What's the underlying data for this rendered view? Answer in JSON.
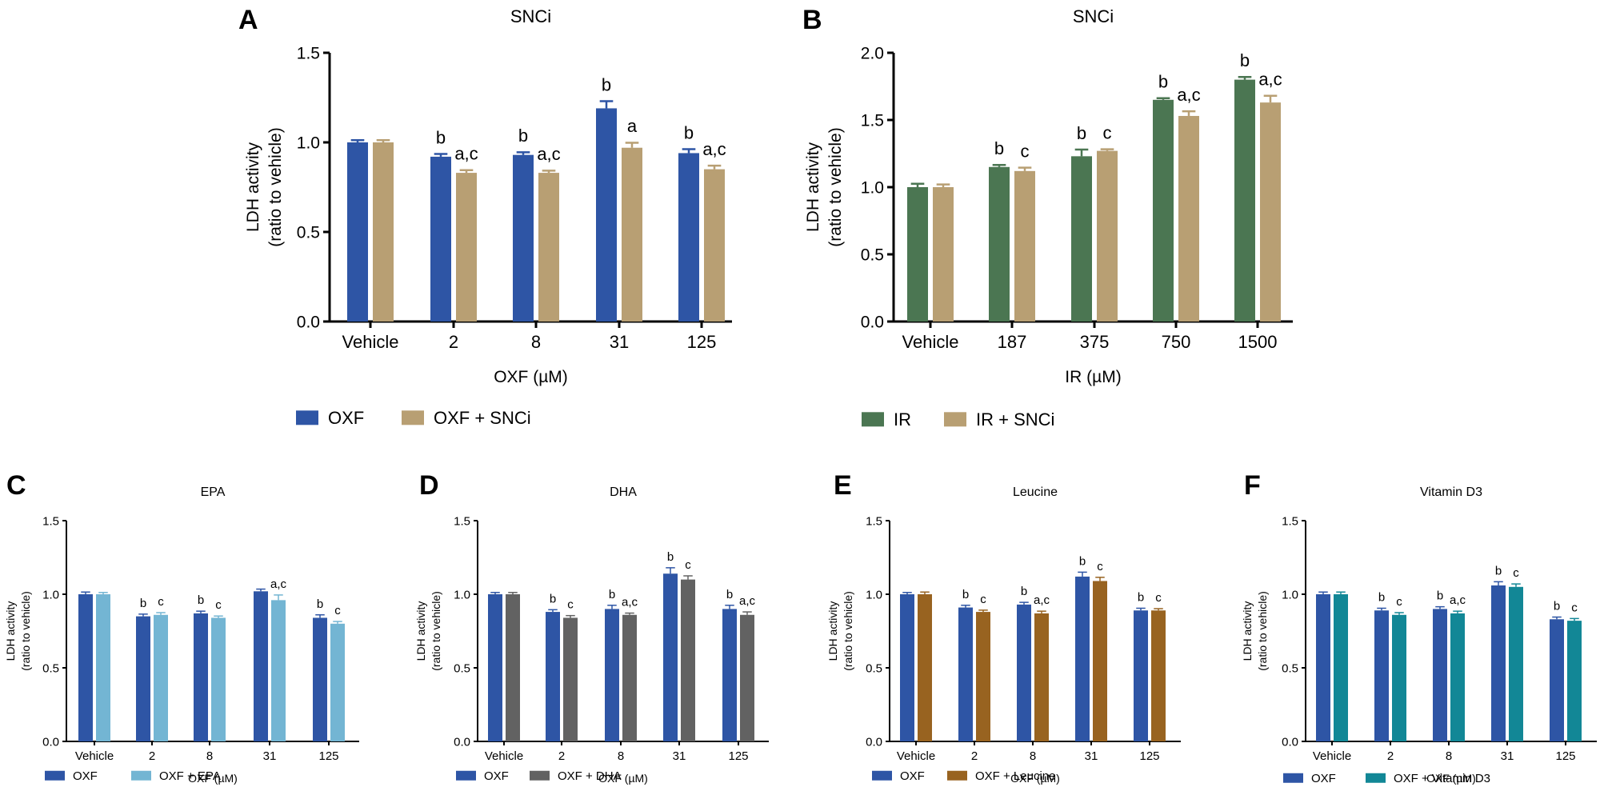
{
  "chart_data": [
    {
      "panel": "A",
      "type": "bar",
      "title": "SNCi",
      "xlabel": "OXF (µM)",
      "ylabel": [
        "LDH activity",
        "(ratio to vehicle)"
      ],
      "categories": [
        "Vehicle",
        "2",
        "8",
        "31",
        "125"
      ],
      "ylim": [
        0,
        1.5
      ],
      "yticks": [
        "0.0",
        "0.5",
        "1.0",
        "1.5"
      ],
      "legend_position": "bottom",
      "series": [
        {
          "name": "OXF",
          "color": "#2e55a5",
          "values": [
            1.0,
            0.92,
            0.93,
            1.19,
            0.94
          ],
          "errors": [
            0.012,
            0.015,
            0.015,
            0.04,
            0.022
          ],
          "labels": [
            "",
            "b",
            "b",
            "b",
            "b"
          ]
        },
        {
          "name": "OXF + SNCi",
          "color": "#b89f73",
          "values": [
            1.0,
            0.83,
            0.83,
            0.97,
            0.85
          ],
          "errors": [
            0.012,
            0.015,
            0.012,
            0.028,
            0.02
          ],
          "labels": [
            "",
            "a,c",
            "a,c",
            "a",
            "a,c"
          ]
        }
      ]
    },
    {
      "panel": "B",
      "type": "bar",
      "title": "SNCi",
      "xlabel": "IR (µM)",
      "ylabel": [
        "LDH activity",
        "(ratio to vehicle)"
      ],
      "categories": [
        "Vehicle",
        "187",
        "375",
        "750",
        "1500"
      ],
      "ylim": [
        0,
        2.0
      ],
      "yticks": [
        "0.0",
        "0.5",
        "1.0",
        "1.5",
        "2.0"
      ],
      "legend_position": "bottom",
      "series": [
        {
          "name": "IR",
          "color": "#4b7652",
          "values": [
            1.0,
            1.15,
            1.23,
            1.65,
            1.8
          ],
          "errors": [
            0.025,
            0.015,
            0.05,
            0.012,
            0.02
          ],
          "labels": [
            "",
            "b",
            "b",
            "b",
            "b"
          ]
        },
        {
          "name": "IR + SNCi",
          "color": "#b89f73",
          "values": [
            1.0,
            1.12,
            1.27,
            1.53,
            1.63
          ],
          "errors": [
            0.02,
            0.025,
            0.012,
            0.035,
            0.05
          ],
          "labels": [
            "",
            "c",
            "c",
            "a,c",
            "a,c"
          ]
        }
      ]
    },
    {
      "panel": "C",
      "type": "bar",
      "title": "EPA",
      "xlabel": "OXF (µM)",
      "ylabel": [
        "LDH activity",
        "(ratio to vehicle)"
      ],
      "categories": [
        "Vehicle",
        "2",
        "8",
        "31",
        "125"
      ],
      "ylim": [
        0,
        1.5
      ],
      "yticks": [
        "0.0",
        "0.5",
        "1.0",
        "1.5"
      ],
      "legend_position": "bottom",
      "series": [
        {
          "name": "OXF",
          "color": "#2e55a5",
          "values": [
            1.0,
            0.85,
            0.87,
            1.02,
            0.84
          ],
          "errors": [
            0.015,
            0.015,
            0.015,
            0.015,
            0.02
          ],
          "labels": [
            "",
            "b",
            "b",
            "",
            "b"
          ]
        },
        {
          "name": "OXF + EPA",
          "color": "#73b5d3",
          "values": [
            1.0,
            0.86,
            0.84,
            0.96,
            0.8
          ],
          "errors": [
            0.012,
            0.015,
            0.012,
            0.035,
            0.015
          ],
          "labels": [
            "",
            "c",
            "c",
            "a,c",
            "c"
          ]
        }
      ]
    },
    {
      "panel": "D",
      "type": "bar",
      "title": "DHA",
      "xlabel": "OXF (µM)",
      "ylabel": [
        "LDH activity",
        "(ratio to vehicle)"
      ],
      "categories": [
        "Vehicle",
        "2",
        "8",
        "31",
        "125"
      ],
      "ylim": [
        0,
        1.5
      ],
      "yticks": [
        "0.0",
        "0.5",
        "1.0",
        "1.5"
      ],
      "legend_position": "bottom",
      "series": [
        {
          "name": "OXF",
          "color": "#2e55a5",
          "values": [
            1.0,
            0.88,
            0.9,
            1.14,
            0.9
          ],
          "errors": [
            0.012,
            0.015,
            0.025,
            0.04,
            0.025
          ],
          "labels": [
            "",
            "b",
            "b",
            "b",
            "b"
          ]
        },
        {
          "name": "OXF + DHA",
          "color": "#626262",
          "values": [
            1.0,
            0.84,
            0.86,
            1.1,
            0.86
          ],
          "errors": [
            0.012,
            0.015,
            0.012,
            0.025,
            0.02
          ],
          "labels": [
            "",
            "c",
            "a,c",
            "c",
            "a,c"
          ]
        }
      ]
    },
    {
      "panel": "E",
      "type": "bar",
      "title": "Leucine",
      "xlabel": "OXF (µM)",
      "ylabel": [
        "LDH activity",
        "(ratio to vehicle)"
      ],
      "categories": [
        "Vehicle",
        "2",
        "8",
        "31",
        "125"
      ],
      "ylim": [
        0,
        1.5
      ],
      "yticks": [
        "0.0",
        "0.5",
        "1.0",
        "1.5"
      ],
      "legend_position": "bottom",
      "series": [
        {
          "name": "OXF",
          "color": "#2e55a5",
          "values": [
            1.0,
            0.91,
            0.93,
            1.12,
            0.89
          ],
          "errors": [
            0.012,
            0.015,
            0.015,
            0.03,
            0.015
          ],
          "labels": [
            "",
            "b",
            "b",
            "b",
            "b"
          ]
        },
        {
          "name": "OXF + Leucine",
          "color": "#986320",
          "values": [
            1.0,
            0.88,
            0.87,
            1.09,
            0.89
          ],
          "errors": [
            0.015,
            0.012,
            0.015,
            0.025,
            0.012
          ],
          "labels": [
            "",
            "c",
            "a,c",
            "c",
            "c"
          ]
        }
      ]
    },
    {
      "panel": "F",
      "type": "bar",
      "title": "Vitamin D3",
      "xlabel": "OXF (µM)",
      "ylabel": [
        "LDH activity",
        "(ratio to vehicle)"
      ],
      "categories": [
        "Vehicle",
        "2",
        "8",
        "31",
        "125"
      ],
      "ylim": [
        0,
        1.5
      ],
      "yticks": [
        "0.0",
        "0.5",
        "1.0",
        "1.5"
      ],
      "legend_position": "bottom",
      "series": [
        {
          "name": "OXF",
          "color": "#2e55a5",
          "values": [
            1.0,
            0.89,
            0.9,
            1.06,
            0.83
          ],
          "errors": [
            0.015,
            0.015,
            0.015,
            0.025,
            0.015
          ],
          "labels": [
            "",
            "b",
            "b",
            "b",
            "b"
          ]
        },
        {
          "name": "OXF + Vitamin D3",
          "color": "#128796",
          "values": [
            1.0,
            0.86,
            0.87,
            1.05,
            0.82
          ],
          "errors": [
            0.015,
            0.015,
            0.015,
            0.02,
            0.015
          ],
          "labels": [
            "",
            "c",
            "a,c",
            "c",
            "c"
          ]
        }
      ]
    }
  ]
}
